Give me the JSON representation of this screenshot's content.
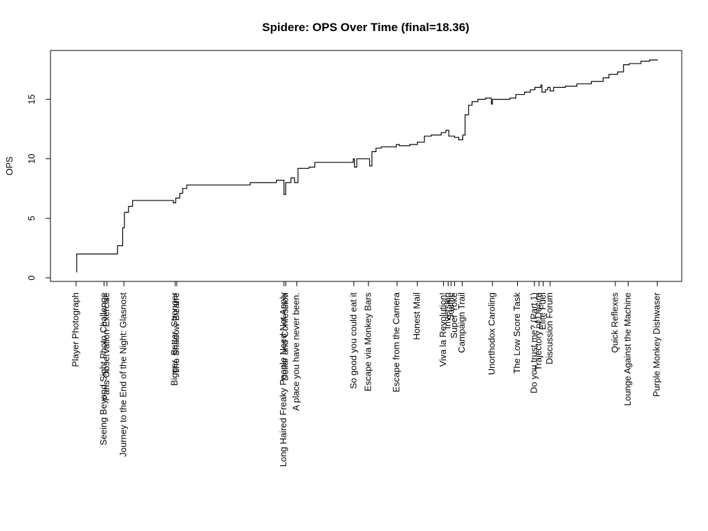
{
  "chart_data": {
    "type": "line",
    "title": "Spidere: OPS Over Time (final=18.36)",
    "y_label": "OPS",
    "step": true,
    "color": "#000000",
    "x": [
      0,
      0.1,
      7.1,
      8.0,
      8.3,
      9.0,
      9.7,
      16.7,
      17.1,
      17.8,
      18.3,
      19.0,
      29.9,
      34.4,
      35.7,
      36.0,
      36.9,
      37.5,
      38.1,
      40.0,
      41.0,
      47.6,
      47.8,
      48.2,
      50.4,
      50.8,
      51.5,
      52.4,
      55.0,
      55.5,
      57.3,
      58.6,
      59.8,
      61.0,
      62.7,
      63.5,
      64.0,
      65.0,
      65.7,
      66.4,
      66.8,
      67.4,
      68.0,
      69.0,
      70.3,
      71.3,
      71.5,
      74.5,
      75.5,
      77.0,
      78.0,
      78.8,
      79.8,
      80.0,
      80.6,
      81.0,
      81.4,
      82.0,
      84.0,
      86.0,
      88.5,
      90.5,
      91.5,
      93.0,
      94.0,
      95.0,
      97.0,
      98.5,
      99.8
    ],
    "values": [
      0.5,
      2.0,
      2.7,
      4.2,
      5.5,
      6.0,
      6.5,
      6.3,
      6.7,
      7.1,
      7.5,
      7.8,
      8.0,
      8.2,
      7.0,
      8.0,
      8.4,
      8.0,
      9.2,
      9.3,
      9.7,
      10.0,
      9.3,
      10.0,
      9.4,
      10.6,
      10.9,
      11.0,
      11.2,
      11.1,
      11.2,
      11.4,
      11.9,
      12.0,
      12.2,
      12.4,
      11.9,
      11.8,
      11.6,
      12.0,
      13.7,
      14.5,
      14.8,
      15.0,
      15.1,
      14.6,
      15.0,
      15.1,
      15.4,
      15.6,
      15.8,
      16.0,
      16.2,
      15.6,
      15.8,
      16.0,
      15.7,
      16.0,
      16.1,
      16.3,
      16.5,
      16.8,
      17.1,
      17.3,
      17.9,
      18.0,
      18.2,
      18.3,
      18.36
    ],
    "xlim": [
      -4.4,
      104
    ],
    "ylim": [
      -0.3,
      19.1
    ],
    "yticks": [
      0,
      5,
      10,
      15
    ],
    "xticks": [
      {
        "value": 0,
        "label": "Player Photograph"
      },
      {
        "value": 4.8,
        "label": "Seeing Beyond Sight Photo Challenge"
      },
      {
        "value": 5.3,
        "label": "Paris Observation Exercise"
      },
      {
        "value": 8.2,
        "label": "Journey to the End of the Night: Glasnost"
      },
      {
        "value": 17.0,
        "label": "Bigger, Better, Stronger"
      },
      {
        "value": 17.3,
        "label": "The Shadow Bizarre"
      },
      {
        "value": 35.7,
        "label": "Long Haired Freaky People Need Not Apply"
      },
      {
        "value": 36.0,
        "label": "Dollar and Confession"
      },
      {
        "value": 37.9,
        "label": "A place you have never been."
      },
      {
        "value": 47.7,
        "label": "So good you could eat it"
      },
      {
        "value": 50.2,
        "label": "Escape via Monkey Bars"
      },
      {
        "value": 55.1,
        "label": "Escape from the Camera"
      },
      {
        "value": 58.6,
        "label": "Honest Mail"
      },
      {
        "value": 63.1,
        "label": "Viva la Revolution!"
      },
      {
        "value": 63.9,
        "label": "Inversion"
      },
      {
        "value": 64.4,
        "label": "Souffle"
      },
      {
        "value": 65.0,
        "label": "Super Yoke"
      },
      {
        "value": 66.3,
        "label": "Campaign Trail"
      },
      {
        "value": 71.5,
        "label": "Unorthodox Caroling"
      },
      {
        "value": 75.8,
        "label": "The Low Score Task"
      },
      {
        "value": 78.7,
        "label": "Do you trust me? (Part 1)"
      },
      {
        "value": 79.5,
        "label": "Trajectory of Desire"
      },
      {
        "value": 80.2,
        "label": "Elite Fuel"
      },
      {
        "value": 81.4,
        "label": "Discussion Forum"
      },
      {
        "value": 92.6,
        "label": "Quick Reflexes"
      },
      {
        "value": 94.8,
        "label": "Lounge Against the Machine"
      },
      {
        "value": 99.8,
        "label": "Purple Monkey Dishwaser"
      }
    ]
  }
}
